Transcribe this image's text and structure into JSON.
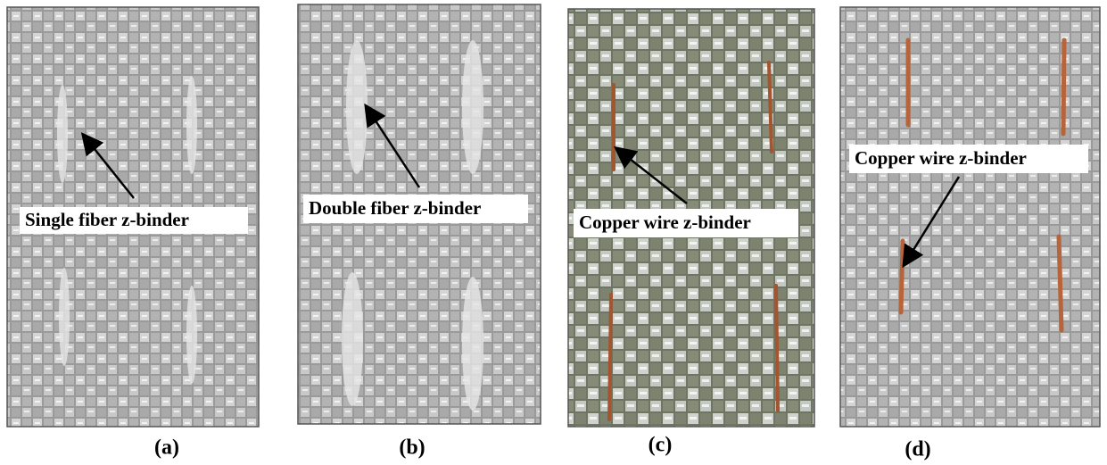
{
  "panels": [
    {
      "label": "Single fiber z-binder",
      "caption": "(a)"
    },
    {
      "label": "Double fiber z-binder",
      "caption": "(b)"
    },
    {
      "label": "Copper wire z-binder",
      "caption": "(c)"
    },
    {
      "label": "Copper wire z-binder",
      "caption": "(d)"
    }
  ]
}
